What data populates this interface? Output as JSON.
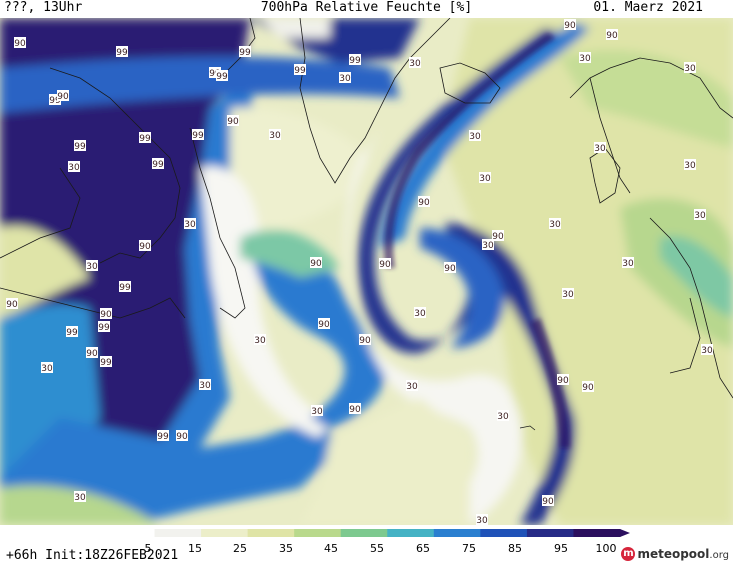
{
  "header": {
    "left": "???, 13Uhr",
    "title": "700hPa Relative Feuchte [%]",
    "date": "01. Maerz 2021"
  },
  "footer": {
    "lead": "+66h Init:18Z26FEB2021",
    "logo_text": "meteopool",
    "logo_suffix": ".org"
  },
  "legend": {
    "ticks": [
      "5",
      "15",
      "25",
      "35",
      "45",
      "55",
      "65",
      "75",
      "85",
      "95",
      "100"
    ],
    "colors": [
      "#ffffff",
      "#f2f2ee",
      "#eceec9",
      "#dfe4a6",
      "#b9d98c",
      "#7dc98f",
      "#45b2c4",
      "#2a7fd0",
      "#1f52b8",
      "#262a86",
      "#2b0f5e"
    ]
  },
  "contour_labels": {
    "label_99": "99",
    "label_90": "90",
    "label_30": "30"
  },
  "map": {
    "field": "relative-humidity-700hPa",
    "palette": {
      "dry": "#f6f6f2",
      "light_yellow": "#eef0cf",
      "yellow_green": "#dfe5ad",
      "green": "#b6d78e",
      "teal": "#74c7a4",
      "cyan": "#3ea6d3",
      "blue": "#2272cf",
      "dark_blue": "#1f44a8",
      "navy": "#2b1d73"
    }
  }
}
